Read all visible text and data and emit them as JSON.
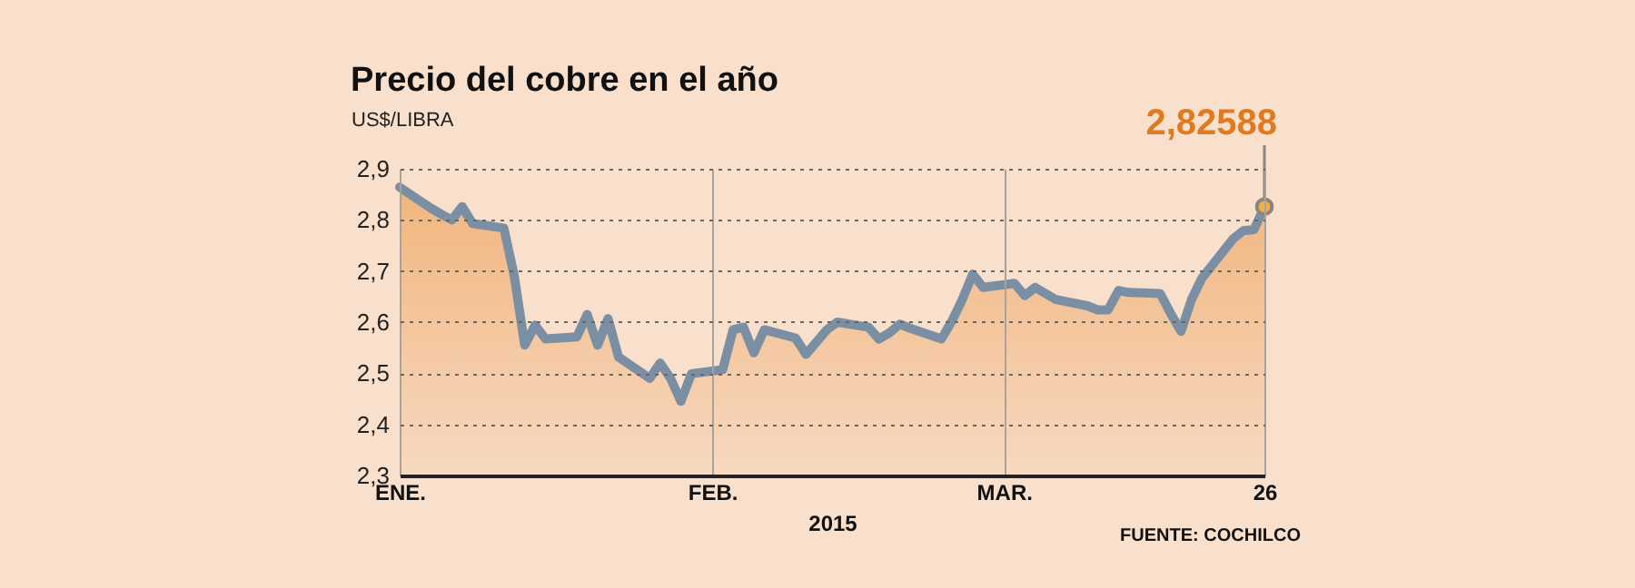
{
  "chart_data": {
    "type": "area",
    "title": "Precio del cobre en el año",
    "ylabel": "US$/LIBRA",
    "xlabel": "2015",
    "annotations": [
      {
        "text": "2,82588",
        "x": "2015-03-26",
        "y": 2.82588
      },
      "FUENTE: COCHILCO"
    ],
    "x": [
      "2015-01-02",
      "2015-01-05",
      "2015-01-06",
      "2015-01-07",
      "2015-01-08",
      "2015-01-09",
      "2015-01-12",
      "2015-01-13",
      "2015-01-14",
      "2015-01-15",
      "2015-01-16",
      "2015-01-19",
      "2015-01-20",
      "2015-01-21",
      "2015-01-22",
      "2015-01-23",
      "2015-01-26",
      "2015-01-27",
      "2015-01-28",
      "2015-01-29",
      "2015-01-30",
      "2015-02-02",
      "2015-02-03",
      "2015-02-04",
      "2015-02-05",
      "2015-02-06",
      "2015-02-09",
      "2015-02-10",
      "2015-02-11",
      "2015-02-12",
      "2015-02-13",
      "2015-02-16",
      "2015-02-17",
      "2015-02-18",
      "2015-02-19",
      "2015-02-20",
      "2015-02-23",
      "2015-02-24",
      "2015-02-25",
      "2015-02-26",
      "2015-02-27",
      "2015-03-02",
      "2015-03-03",
      "2015-03-04",
      "2015-03-05",
      "2015-03-06",
      "2015-03-09",
      "2015-03-10",
      "2015-03-11",
      "2015-03-12",
      "2015-03-13",
      "2015-03-16",
      "2015-03-17",
      "2015-03-18",
      "2015-03-19",
      "2015-03-20",
      "2015-03-23",
      "2015-03-24",
      "2015-03-25",
      "2015-03-26"
    ],
    "series": [
      {
        "color": "#7a8fa3",
        "values": [
          2.864,
          2.823,
          2.811,
          2.8,
          2.826,
          2.793,
          2.784,
          2.69,
          2.555,
          2.594,
          2.567,
          2.571,
          2.615,
          2.555,
          2.607,
          2.532,
          2.49,
          2.52,
          2.49,
          2.445,
          2.499,
          2.507,
          2.585,
          2.59,
          2.54,
          2.585,
          2.569,
          2.537,
          2.561,
          2.585,
          2.6,
          2.59,
          2.567,
          2.579,
          2.596,
          2.588,
          2.567,
          2.602,
          2.644,
          2.694,
          2.668,
          2.676,
          2.652,
          2.668,
          2.656,
          2.644,
          2.632,
          2.624,
          2.624,
          2.662,
          2.658,
          2.656,
          2.617,
          2.582,
          2.644,
          2.686,
          2.763,
          2.779,
          2.781,
          2.82588
        ]
      }
    ],
    "xlim": [
      "2015-01-02",
      "2015-03-26"
    ],
    "xticks": [
      {
        "value": "2015-01-02",
        "label": "ENE."
      },
      {
        "value": "2015-02-01",
        "label": "FEB."
      },
      {
        "value": "2015-03-01",
        "label": "MAR."
      },
      {
        "value": "2015-03-26",
        "label": "26"
      }
    ],
    "ylim": [
      2.3,
      2.9
    ],
    "yticks": [
      {
        "value": 2.3,
        "label": "2,3"
      },
      {
        "value": 2.4,
        "label": "2,4"
      },
      {
        "value": 2.5,
        "label": "2,5"
      },
      {
        "value": 2.6,
        "label": "2,6"
      },
      {
        "value": 2.7,
        "label": "2,7"
      },
      {
        "value": 2.8,
        "label": "2,8"
      },
      {
        "value": 2.9,
        "label": "2,9"
      }
    ],
    "grid": true
  }
}
